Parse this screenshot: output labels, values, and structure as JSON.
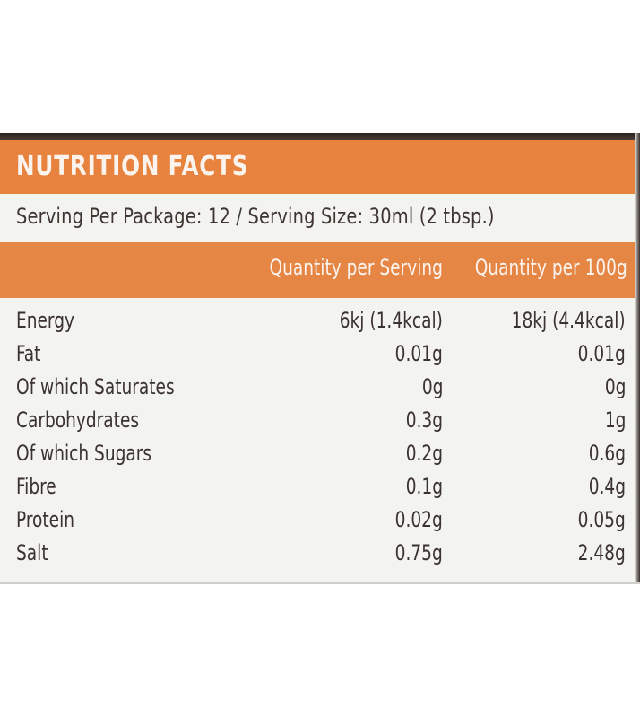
{
  "label": {
    "title": "NUTRITION FACTS",
    "serving": "Serving Per Package: 12  /  Serving Size: 30ml (2 tbsp.)",
    "columns": [
      "Quantity per Serving",
      "Quantity per 100g"
    ],
    "rows": [
      {
        "name": "Energy",
        "per_serving": "6kj (1.4kcal)",
        "per_100g": "18kj (4.4kcal)"
      },
      {
        "name": "Fat",
        "per_serving": "0.01g",
        "per_100g": "0.01g"
      },
      {
        "name": "Of which Saturates",
        "per_serving": "0g",
        "per_100g": "0g"
      },
      {
        "name": "Carbohydrates",
        "per_serving": "0.3g",
        "per_100g": "1g"
      },
      {
        "name": "Of which Sugars",
        "per_serving": "0.2g",
        "per_100g": "0.6g"
      },
      {
        "name": "Fibre",
        "per_serving": "0.1g",
        "per_100g": "0.4g"
      },
      {
        "name": "Protein",
        "per_serving": "0.02g",
        "per_100g": "0.05g"
      },
      {
        "name": "Salt",
        "per_serving": "0.75g",
        "per_100g": "2.48g"
      }
    ]
  },
  "colors": {
    "orange": "#e8833f",
    "label_bg": "#f3f3f0",
    "text": "#3a3230"
  }
}
